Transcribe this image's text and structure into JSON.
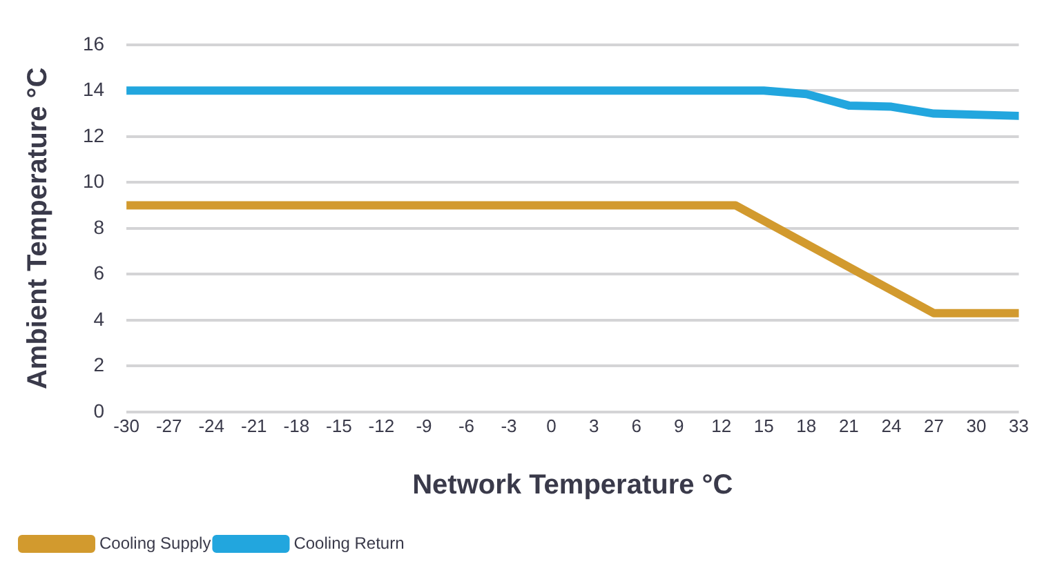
{
  "chart_data": {
    "type": "line",
    "xlabel": "Network Temperature °C",
    "ylabel": "Ambient Temperature °C",
    "xlim": [
      -30,
      33
    ],
    "xticks": [
      -30,
      -27,
      -24,
      -21,
      -18,
      -15,
      -12,
      -9,
      -6,
      -3,
      0,
      3,
      6,
      9,
      12,
      15,
      18,
      21,
      24,
      27,
      30,
      33
    ],
    "ylim": [
      0,
      16
    ],
    "yticks": [
      0,
      2,
      4,
      6,
      8,
      10,
      12,
      14,
      16
    ],
    "grid": "y",
    "legend": "bottom left",
    "marker": "none",
    "line_style": "solid",
    "series": [
      {
        "name": "Cooling Supply",
        "color": "#d29a2e",
        "x": [
          -30,
          13,
          27,
          33
        ],
        "values": [
          9,
          9,
          4.3,
          4.3
        ]
      },
      {
        "name": "Cooling Return",
        "color": "#22a6de",
        "x": [
          -30,
          15,
          18,
          21,
          24,
          27,
          33
        ],
        "values": [
          14,
          14,
          13.85,
          13.35,
          13.3,
          13,
          12.9
        ]
      }
    ]
  }
}
